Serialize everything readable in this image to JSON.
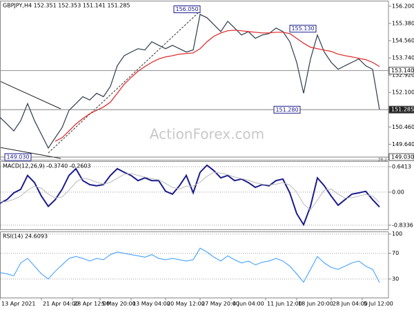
{
  "watermark": "ActionForex.com",
  "chart_data": [
    {
      "type": "line",
      "title": "GBPJPY,H4 152.351 152.353 151.141 151.285",
      "xlim": [
        0,
        56
      ],
      "ylim": [
        148.9,
        156.46
      ],
      "grid": false,
      "yticks": [
        {
          "value": 156.2,
          "label": "156.200"
        },
        {
          "value": 155.38,
          "label": "155.380"
        },
        {
          "value": 154.56,
          "label": "154.560"
        },
        {
          "value": 153.74,
          "label": "153.740"
        },
        {
          "value": 152.92,
          "label": "152.920"
        },
        {
          "value": 152.1,
          "label": "152.100"
        },
        {
          "value": 150.46,
          "label": "150.460"
        },
        {
          "value": 149.64,
          "label": "149.640"
        }
      ],
      "series": [
        {
          "color": "#2b3a4a",
          "values": [
            150.92,
            150.6,
            150.27,
            150.76,
            151.57,
            150.76,
            150.11,
            149.46,
            149.95,
            150.43,
            151.25,
            151.57,
            151.9,
            151.74,
            152.06,
            151.9,
            152.39,
            153.37,
            153.85,
            154.02,
            154.18,
            154.12,
            154.51,
            154.34,
            154.18,
            154.34,
            154.18,
            154.02,
            154.12,
            155.81,
            155.65,
            155.32,
            154.99,
            155.48,
            155.16,
            154.83,
            154.99,
            154.67,
            154.83,
            154.9,
            155.16,
            154.99,
            154.51,
            153.53,
            152.06,
            153.69,
            154.83,
            154.02,
            153.53,
            153.2,
            153.37,
            153.53,
            153.69,
            153.37,
            153.2,
            151.285
          ]
        },
        {
          "color": "#e02020",
          "values": [
            null,
            null,
            null,
            null,
            null,
            null,
            null,
            null,
            149.78,
            149.95,
            150.27,
            150.6,
            150.86,
            151.09,
            151.25,
            151.41,
            151.64,
            152.06,
            152.49,
            152.81,
            153.11,
            153.33,
            153.53,
            153.69,
            153.79,
            153.85,
            153.92,
            153.95,
            153.98,
            154.18,
            154.51,
            154.77,
            154.93,
            155.03,
            155.06,
            155.03,
            154.99,
            154.96,
            154.93,
            154.93,
            154.96,
            154.96,
            154.9,
            154.67,
            154.44,
            154.25,
            154.18,
            154.11,
            154.05,
            153.92,
            153.85,
            153.79,
            153.72,
            153.66,
            153.53,
            153.33
          ]
        }
      ],
      "levels": [
        {
          "value": 153.14,
          "label": "153.140"
        },
        {
          "value": 151.285,
          "label": "151.285"
        },
        {
          "value": 149.03,
          "label": "149.030"
        }
      ],
      "annotations": [
        {
          "x": 29,
          "value": 156.05,
          "label": "156.050"
        },
        {
          "x": 42,
          "value": 155.13,
          "label": "155.130"
        },
        {
          "x": 43.5,
          "value": 151.28,
          "label": "151.280"
        },
        {
          "x": 4.5,
          "value": 149.03,
          "label": "149.030"
        }
      ],
      "fib_label": "38.2"
    },
    {
      "type": "line",
      "title": "MACD(12,26,9) -0.3740 -0.2603",
      "xlim": [
        0,
        56
      ],
      "ylim": [
        -0.94,
        0.78
      ],
      "grid": true,
      "yticks": [
        0.6413,
        {
          "value": 0,
          "label": "0.00"
        },
        -0.8336
      ],
      "series": [
        {
          "color": "#1a1a8c",
          "width": 2,
          "values": [
            -0.28,
            -0.19,
            -0.02,
            0.07,
            0.42,
            0.24,
            -0.1,
            -0.36,
            -0.19,
            0.07,
            0.42,
            0.59,
            0.29,
            0.19,
            0.16,
            0.19,
            0.42,
            0.59,
            0.5,
            0.42,
            0.29,
            0.36,
            0.29,
            0.29,
            0.02,
            -0.05,
            0.16,
            0.42,
            -0.02,
            0.5,
            0.68,
            0.54,
            0.36,
            0.42,
            0.29,
            0.33,
            0.24,
            0.12,
            0.19,
            0.16,
            0.29,
            0.33,
            -0.02,
            -0.54,
            -0.82,
            -0.36,
            0.36,
            0.16,
            -0.1,
            -0.33,
            -0.19,
            -0.05,
            -0.02,
            0.02,
            -0.19,
            -0.374
          ]
        },
        {
          "color": "#b8b8b8",
          "width": 1,
          "values": [
            -0.25,
            -0.24,
            -0.18,
            -0.1,
            0.05,
            0.15,
            0.1,
            -0.05,
            -0.15,
            -0.12,
            0.05,
            0.25,
            0.35,
            0.32,
            0.25,
            0.2,
            0.25,
            0.35,
            0.45,
            0.47,
            0.42,
            0.38,
            0.34,
            0.31,
            0.22,
            0.12,
            0.08,
            0.15,
            0.15,
            0.25,
            0.4,
            0.5,
            0.48,
            0.44,
            0.38,
            0.34,
            0.3,
            0.24,
            0.2,
            0.18,
            0.2,
            0.24,
            0.18,
            0,
            -0.3,
            -0.45,
            -0.2,
            0.05,
            0.08,
            -0.05,
            -0.15,
            -0.14,
            -0.1,
            -0.06,
            -0.1,
            -0.2603
          ]
        }
      ]
    },
    {
      "type": "line",
      "title": "RSI(14) 24.6093",
      "xlim": [
        0,
        56
      ],
      "ylim": [
        1,
        104
      ],
      "grid": true,
      "yticks": [
        100,
        70,
        30
      ],
      "series": [
        {
          "color": "#3399ff",
          "width": 1,
          "values": [
            40,
            38,
            35,
            55,
            62,
            50,
            38,
            30,
            42,
            52,
            62,
            65,
            62,
            58,
            62,
            60,
            68,
            72,
            70,
            68,
            66,
            64,
            68,
            62,
            60,
            62,
            60,
            58,
            60,
            78,
            72,
            64,
            58,
            66,
            60,
            55,
            58,
            52,
            56,
            58,
            62,
            58,
            50,
            38,
            25,
            45,
            65,
            55,
            48,
            45,
            50,
            55,
            58,
            50,
            45,
            24.6093
          ]
        }
      ],
      "xticks": [
        {
          "value": 0,
          "label": "13 Apr 2021"
        },
        {
          "value": 6,
          "label": "21 Apr 04:00"
        },
        {
          "value": 10.5,
          "label": "28 Apr 12:00"
        },
        {
          "value": 14.5,
          "label": "5 May 20:00"
        },
        {
          "value": 19,
          "label": "13 May 04:00"
        },
        {
          "value": 24,
          "label": "20 May 12:00"
        },
        {
          "value": 29,
          "label": "27 May 20:00"
        },
        {
          "value": 33.5,
          "label": "4 Jun 04:00"
        },
        {
          "value": 38.5,
          "label": "11 Jun 12:00"
        },
        {
          "value": 43,
          "label": "18 Jun 20:00"
        },
        {
          "value": 48,
          "label": "28 Jun 04:00"
        },
        {
          "value": 52.5,
          "label": "5 Jul 12:00"
        }
      ]
    }
  ]
}
